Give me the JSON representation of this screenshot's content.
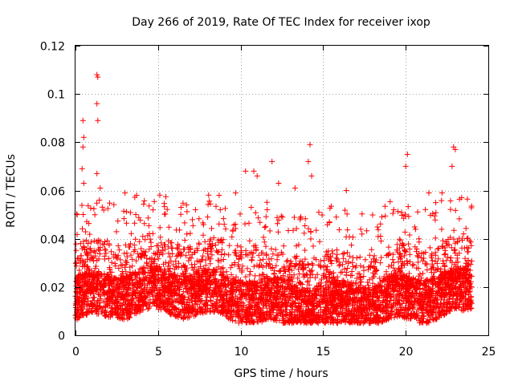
{
  "chart_data": {
    "type": "scatter",
    "title": "Day 266 of 2019, Rate Of TEC Index for receiver ixop",
    "xlabel": "GPS time / hours",
    "ylabel": "ROTI / TECUs",
    "xlim": [
      0,
      25
    ],
    "ylim": [
      0,
      0.12
    ],
    "xticks": [
      0,
      5,
      10,
      15,
      20,
      25
    ],
    "xtick_labels": [
      "0",
      "5",
      "10",
      "15",
      "20",
      "25"
    ],
    "yticks": [
      0,
      0.02,
      0.04,
      0.06,
      0.08,
      0.1,
      0.12
    ],
    "ytick_labels": [
      "0",
      "0.02",
      "0.04",
      "0.06",
      "0.08",
      "0.1",
      "0.12"
    ],
    "grid": true,
    "marker": "+",
    "color": "#ff0000",
    "series": [
      {
        "name": "ROTI",
        "notable_points": [
          {
            "x": 1.3,
            "y": 0.108
          },
          {
            "x": 1.35,
            "y": 0.107
          },
          {
            "x": 1.3,
            "y": 0.096
          },
          {
            "x": 1.35,
            "y": 0.089
          },
          {
            "x": 0.45,
            "y": 0.089
          },
          {
            "x": 0.5,
            "y": 0.082
          },
          {
            "x": 0.45,
            "y": 0.078
          },
          {
            "x": 0.4,
            "y": 0.069
          },
          {
            "x": 0.5,
            "y": 0.063
          },
          {
            "x": 1.3,
            "y": 0.067
          },
          {
            "x": 1.5,
            "y": 0.061
          },
          {
            "x": 1.45,
            "y": 0.056
          },
          {
            "x": 14.2,
            "y": 0.079
          },
          {
            "x": 14.1,
            "y": 0.072
          },
          {
            "x": 14.3,
            "y": 0.066
          },
          {
            "x": 20.1,
            "y": 0.075
          },
          {
            "x": 20.0,
            "y": 0.07
          },
          {
            "x": 22.9,
            "y": 0.078
          },
          {
            "x": 23.0,
            "y": 0.077
          },
          {
            "x": 22.8,
            "y": 0.07
          },
          {
            "x": 11.9,
            "y": 0.072
          },
          {
            "x": 12.3,
            "y": 0.063
          },
          {
            "x": 10.3,
            "y": 0.068
          },
          {
            "x": 10.8,
            "y": 0.068
          },
          {
            "x": 11.0,
            "y": 0.066
          },
          {
            "x": 3.7,
            "y": 0.058
          },
          {
            "x": 3.0,
            "y": 0.059
          },
          {
            "x": 16.4,
            "y": 0.06
          },
          {
            "x": 8.7,
            "y": 0.058
          },
          {
            "x": 9.7,
            "y": 0.059
          },
          {
            "x": 0.1,
            "y": 0.05
          },
          {
            "x": 4.7,
            "y": 0.052
          },
          {
            "x": 13.3,
            "y": 0.061
          },
          {
            "x": 21.4,
            "y": 0.059
          },
          {
            "x": 22.2,
            "y": 0.059
          },
          {
            "x": 23.5,
            "y": 0.042
          }
        ],
        "band": {
          "x_range": [
            0,
            24
          ],
          "typical_min": 0.005,
          "typical_max": 0.045,
          "dense_center": 0.015
        }
      }
    ]
  }
}
